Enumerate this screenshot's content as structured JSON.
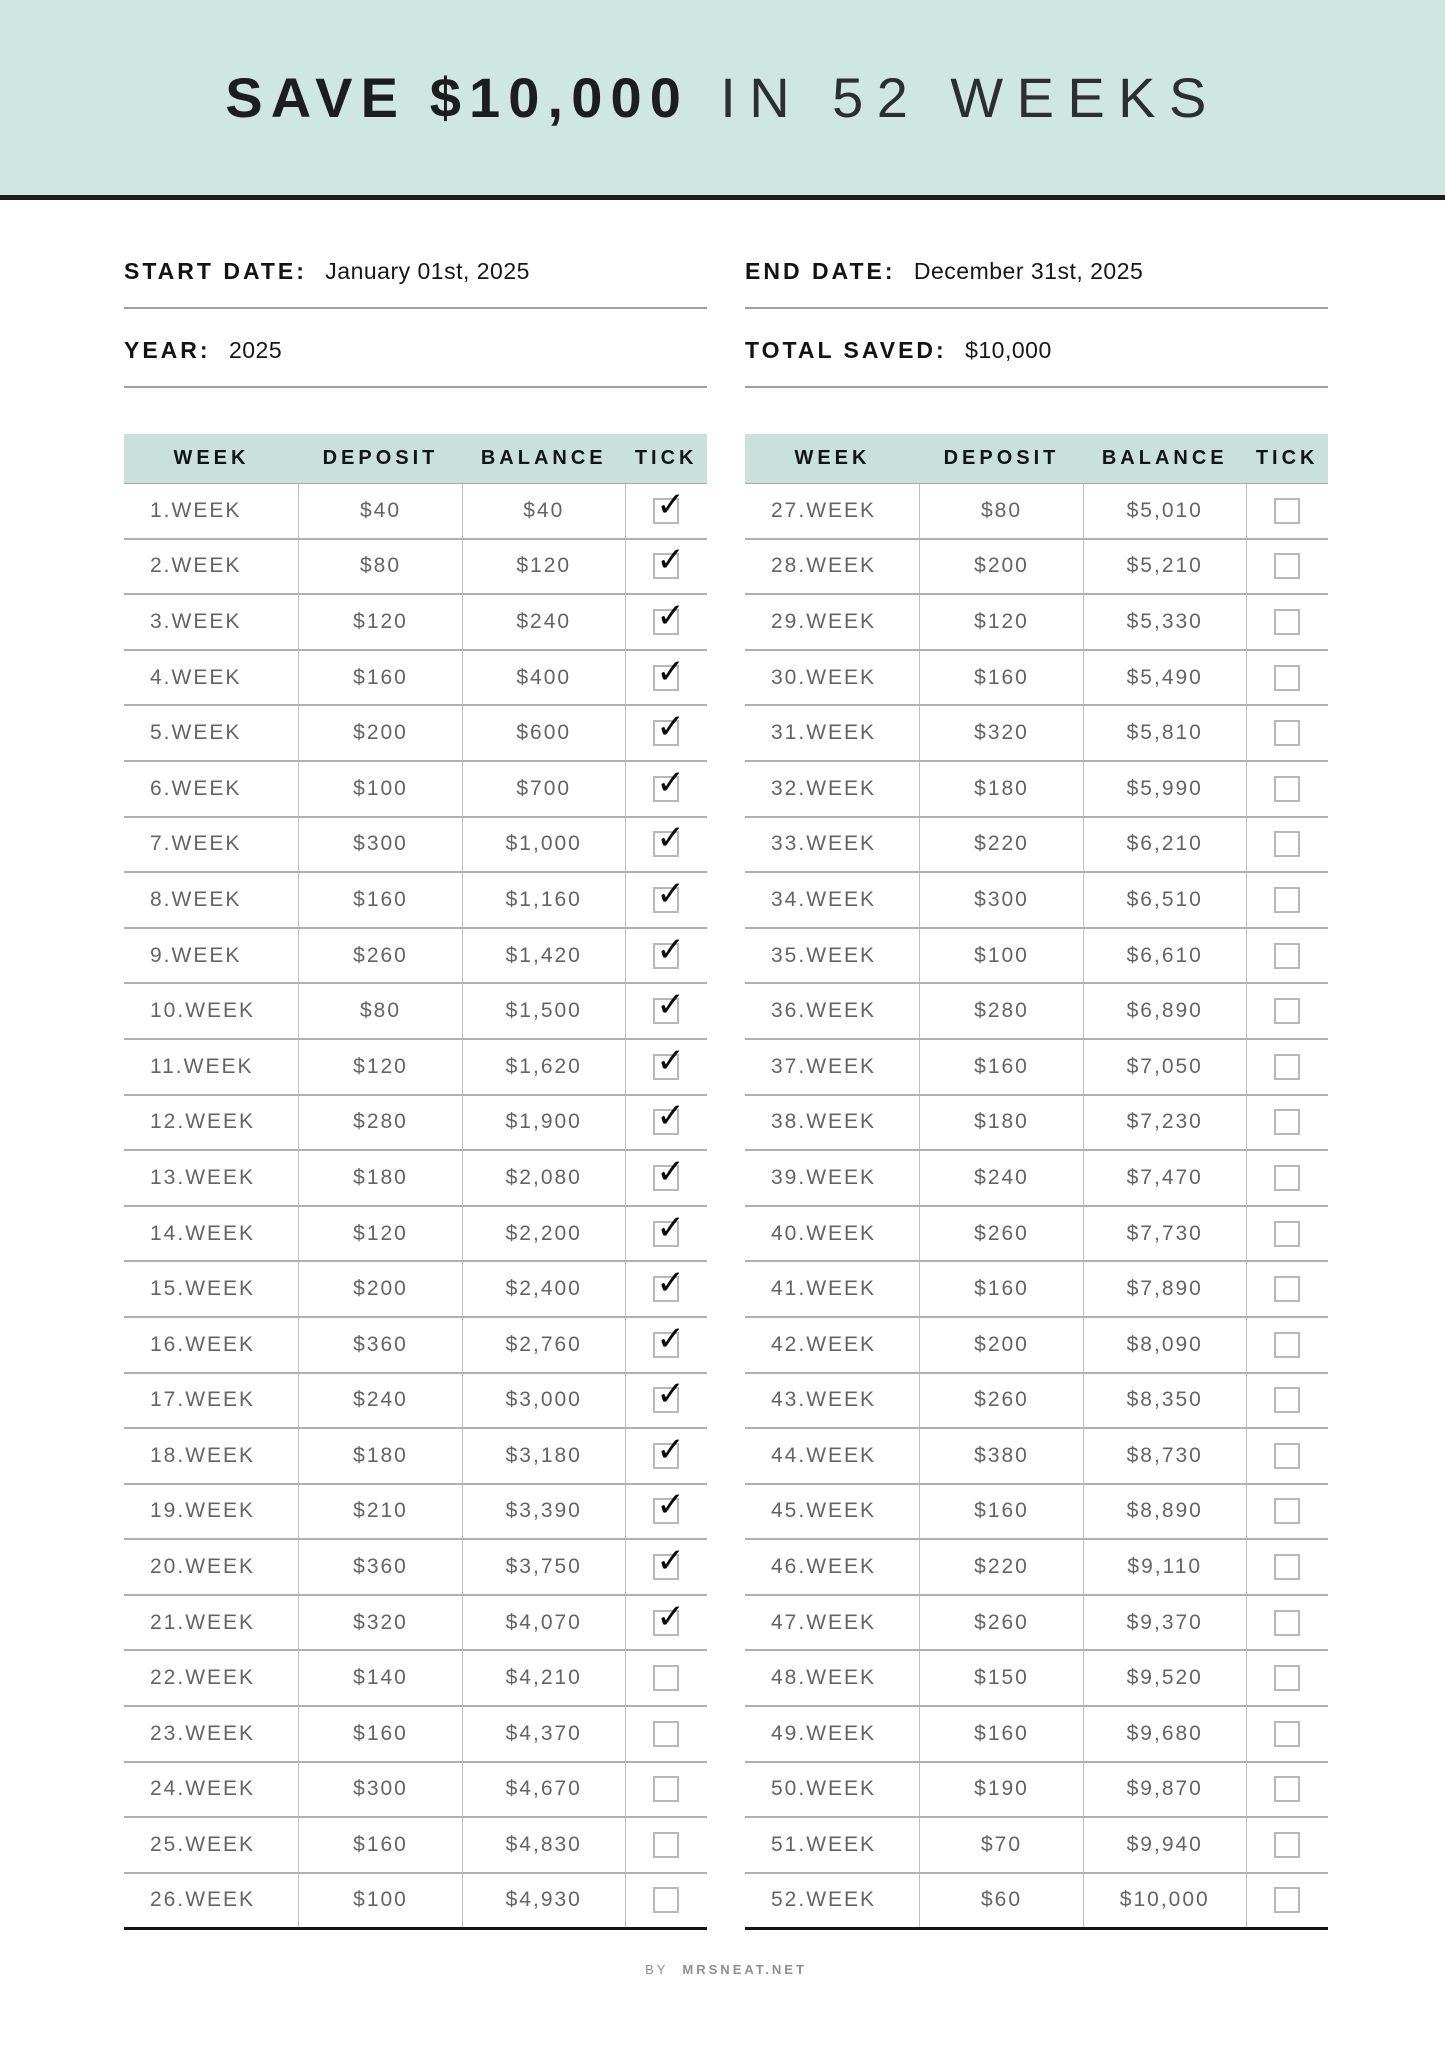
{
  "title": {
    "bold": "SAVE $10,000",
    "light": "IN 52 WEEKS"
  },
  "fields": {
    "start_date": {
      "label": "START DATE:",
      "value": "January 01st, 2025"
    },
    "end_date": {
      "label": "END DATE:",
      "value": "December 31st, 2025"
    },
    "year": {
      "label": "YEAR:",
      "value": "2025"
    },
    "total_saved": {
      "label": "TOTAL SAVED:",
      "value": "$10,000"
    }
  },
  "table": {
    "headers": [
      "WEEK",
      "DEPOSIT",
      "BALANCE",
      "TICK"
    ],
    "left_rows": [
      {
        "week": "1.WEEK",
        "deposit": "$40",
        "balance": "$40",
        "ticked": true
      },
      {
        "week": "2.WEEK",
        "deposit": "$80",
        "balance": "$120",
        "ticked": true
      },
      {
        "week": "3.WEEK",
        "deposit": "$120",
        "balance": "$240",
        "ticked": true
      },
      {
        "week": "4.WEEK",
        "deposit": "$160",
        "balance": "$400",
        "ticked": true
      },
      {
        "week": "5.WEEK",
        "deposit": "$200",
        "balance": "$600",
        "ticked": true
      },
      {
        "week": "6.WEEK",
        "deposit": "$100",
        "balance": "$700",
        "ticked": true
      },
      {
        "week": "7.WEEK",
        "deposit": "$300",
        "balance": "$1,000",
        "ticked": true
      },
      {
        "week": "8.WEEK",
        "deposit": "$160",
        "balance": "$1,160",
        "ticked": true
      },
      {
        "week": "9.WEEK",
        "deposit": "$260",
        "balance": "$1,420",
        "ticked": true
      },
      {
        "week": "10.WEEK",
        "deposit": "$80",
        "balance": "$1,500",
        "ticked": true
      },
      {
        "week": "11.WEEK",
        "deposit": "$120",
        "balance": "$1,620",
        "ticked": true
      },
      {
        "week": "12.WEEK",
        "deposit": "$280",
        "balance": "$1,900",
        "ticked": true
      },
      {
        "week": "13.WEEK",
        "deposit": "$180",
        "balance": "$2,080",
        "ticked": true
      },
      {
        "week": "14.WEEK",
        "deposit": "$120",
        "balance": "$2,200",
        "ticked": true
      },
      {
        "week": "15.WEEK",
        "deposit": "$200",
        "balance": "$2,400",
        "ticked": true
      },
      {
        "week": "16.WEEK",
        "deposit": "$360",
        "balance": "$2,760",
        "ticked": true
      },
      {
        "week": "17.WEEK",
        "deposit": "$240",
        "balance": "$3,000",
        "ticked": true
      },
      {
        "week": "18.WEEK",
        "deposit": "$180",
        "balance": "$3,180",
        "ticked": true
      },
      {
        "week": "19.WEEK",
        "deposit": "$210",
        "balance": "$3,390",
        "ticked": true
      },
      {
        "week": "20.WEEK",
        "deposit": "$360",
        "balance": "$3,750",
        "ticked": true
      },
      {
        "week": "21.WEEK",
        "deposit": "$320",
        "balance": "$4,070",
        "ticked": true
      },
      {
        "week": "22.WEEK",
        "deposit": "$140",
        "balance": "$4,210",
        "ticked": false
      },
      {
        "week": "23.WEEK",
        "deposit": "$160",
        "balance": "$4,370",
        "ticked": false
      },
      {
        "week": "24.WEEK",
        "deposit": "$300",
        "balance": "$4,670",
        "ticked": false
      },
      {
        "week": "25.WEEK",
        "deposit": "$160",
        "balance": "$4,830",
        "ticked": false
      },
      {
        "week": "26.WEEK",
        "deposit": "$100",
        "balance": "$4,930",
        "ticked": false
      }
    ],
    "right_rows": [
      {
        "week": "27.WEEK",
        "deposit": "$80",
        "balance": "$5,010",
        "ticked": false
      },
      {
        "week": "28.WEEK",
        "deposit": "$200",
        "balance": "$5,210",
        "ticked": false
      },
      {
        "week": "29.WEEK",
        "deposit": "$120",
        "balance": "$5,330",
        "ticked": false
      },
      {
        "week": "30.WEEK",
        "deposit": "$160",
        "balance": "$5,490",
        "ticked": false
      },
      {
        "week": "31.WEEK",
        "deposit": "$320",
        "balance": "$5,810",
        "ticked": false
      },
      {
        "week": "32.WEEK",
        "deposit": "$180",
        "balance": "$5,990",
        "ticked": false
      },
      {
        "week": "33.WEEK",
        "deposit": "$220",
        "balance": "$6,210",
        "ticked": false
      },
      {
        "week": "34.WEEK",
        "deposit": "$300",
        "balance": "$6,510",
        "ticked": false
      },
      {
        "week": "35.WEEK",
        "deposit": "$100",
        "balance": "$6,610",
        "ticked": false
      },
      {
        "week": "36.WEEK",
        "deposit": "$280",
        "balance": "$6,890",
        "ticked": false
      },
      {
        "week": "37.WEEK",
        "deposit": "$160",
        "balance": "$7,050",
        "ticked": false
      },
      {
        "week": "38.WEEK",
        "deposit": "$180",
        "balance": "$7,230",
        "ticked": false
      },
      {
        "week": "39.WEEK",
        "deposit": "$240",
        "balance": "$7,470",
        "ticked": false
      },
      {
        "week": "40.WEEK",
        "deposit": "$260",
        "balance": "$7,730",
        "ticked": false
      },
      {
        "week": "41.WEEK",
        "deposit": "$160",
        "balance": "$7,890",
        "ticked": false
      },
      {
        "week": "42.WEEK",
        "deposit": "$200",
        "balance": "$8,090",
        "ticked": false
      },
      {
        "week": "43.WEEK",
        "deposit": "$260",
        "balance": "$8,350",
        "ticked": false
      },
      {
        "week": "44.WEEK",
        "deposit": "$380",
        "balance": "$8,730",
        "ticked": false
      },
      {
        "week": "45.WEEK",
        "deposit": "$160",
        "balance": "$8,890",
        "ticked": false
      },
      {
        "week": "46.WEEK",
        "deposit": "$220",
        "balance": "$9,110",
        "ticked": false
      },
      {
        "week": "47.WEEK",
        "deposit": "$260",
        "balance": "$9,370",
        "ticked": false
      },
      {
        "week": "48.WEEK",
        "deposit": "$150",
        "balance": "$9,520",
        "ticked": false
      },
      {
        "week": "49.WEEK",
        "deposit": "$160",
        "balance": "$9,680",
        "ticked": false
      },
      {
        "week": "50.WEEK",
        "deposit": "$190",
        "balance": "$9,870",
        "ticked": false
      },
      {
        "week": "51.WEEK",
        "deposit": "$70",
        "balance": "$9,940",
        "ticked": false
      },
      {
        "week": "52.WEEK",
        "deposit": "$60",
        "balance": "$10,000",
        "ticked": false
      }
    ]
  },
  "footer": {
    "by": "BY",
    "site": "MRSNEAT.NET"
  },
  "icons": {
    "tick": "check-icon"
  },
  "colors": {
    "header_band": "#cee7e1",
    "table_header": "#c8e2db",
    "dark_rule": "#1d1d1d",
    "cell_text": "#646464",
    "grid_line": "#b0b0b0",
    "checkbox_border": "#b8b8b8",
    "footer_text": "#8f8f8f"
  }
}
